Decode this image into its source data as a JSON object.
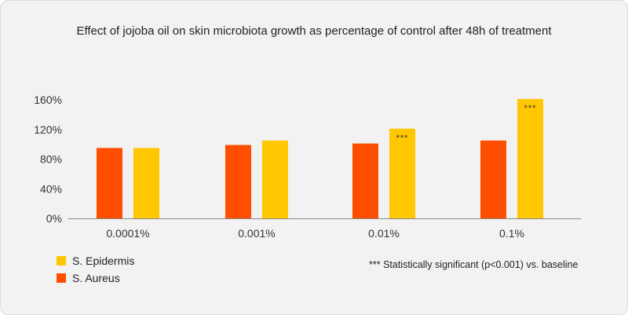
{
  "chart_data": {
    "type": "bar",
    "title": "Effect of jojoba oil on skin microbiota growth as percentage of control after 48h of treatment",
    "xlabel": "",
    "ylabel": "",
    "categories": [
      "0.0001%",
      "0.001%",
      "0.01%",
      "0.1%"
    ],
    "series": [
      {
        "name": "S. Aureus",
        "color": "#ff4e00",
        "values": [
          95,
          99,
          101,
          105
        ]
      },
      {
        "name": "S. Epidermis",
        "color": "#ffc700",
        "values": [
          95,
          105,
          121,
          161
        ]
      }
    ],
    "annotations": [
      {
        "series": "S. Epidermis",
        "category": "0.01%",
        "text": "***"
      },
      {
        "series": "S. Epidermis",
        "category": "0.1%",
        "text": "***"
      }
    ],
    "y_ticks": [
      "0%",
      "40%",
      "80%",
      "120%",
      "160%"
    ],
    "y_tick_values": [
      0,
      40,
      80,
      120,
      160
    ],
    "ylim": [
      0,
      160
    ],
    "grid": false,
    "legend": [
      "S. Epidermis",
      "S. Aureus"
    ],
    "legend_position": "bottom-left",
    "note": "*** Statistically significant (p<0.001) vs. baseline"
  },
  "colors": {
    "background": "#f2f2f2",
    "s_aureus": "#ff4e00",
    "s_epidermis": "#ffc700",
    "axis": "#888888"
  }
}
